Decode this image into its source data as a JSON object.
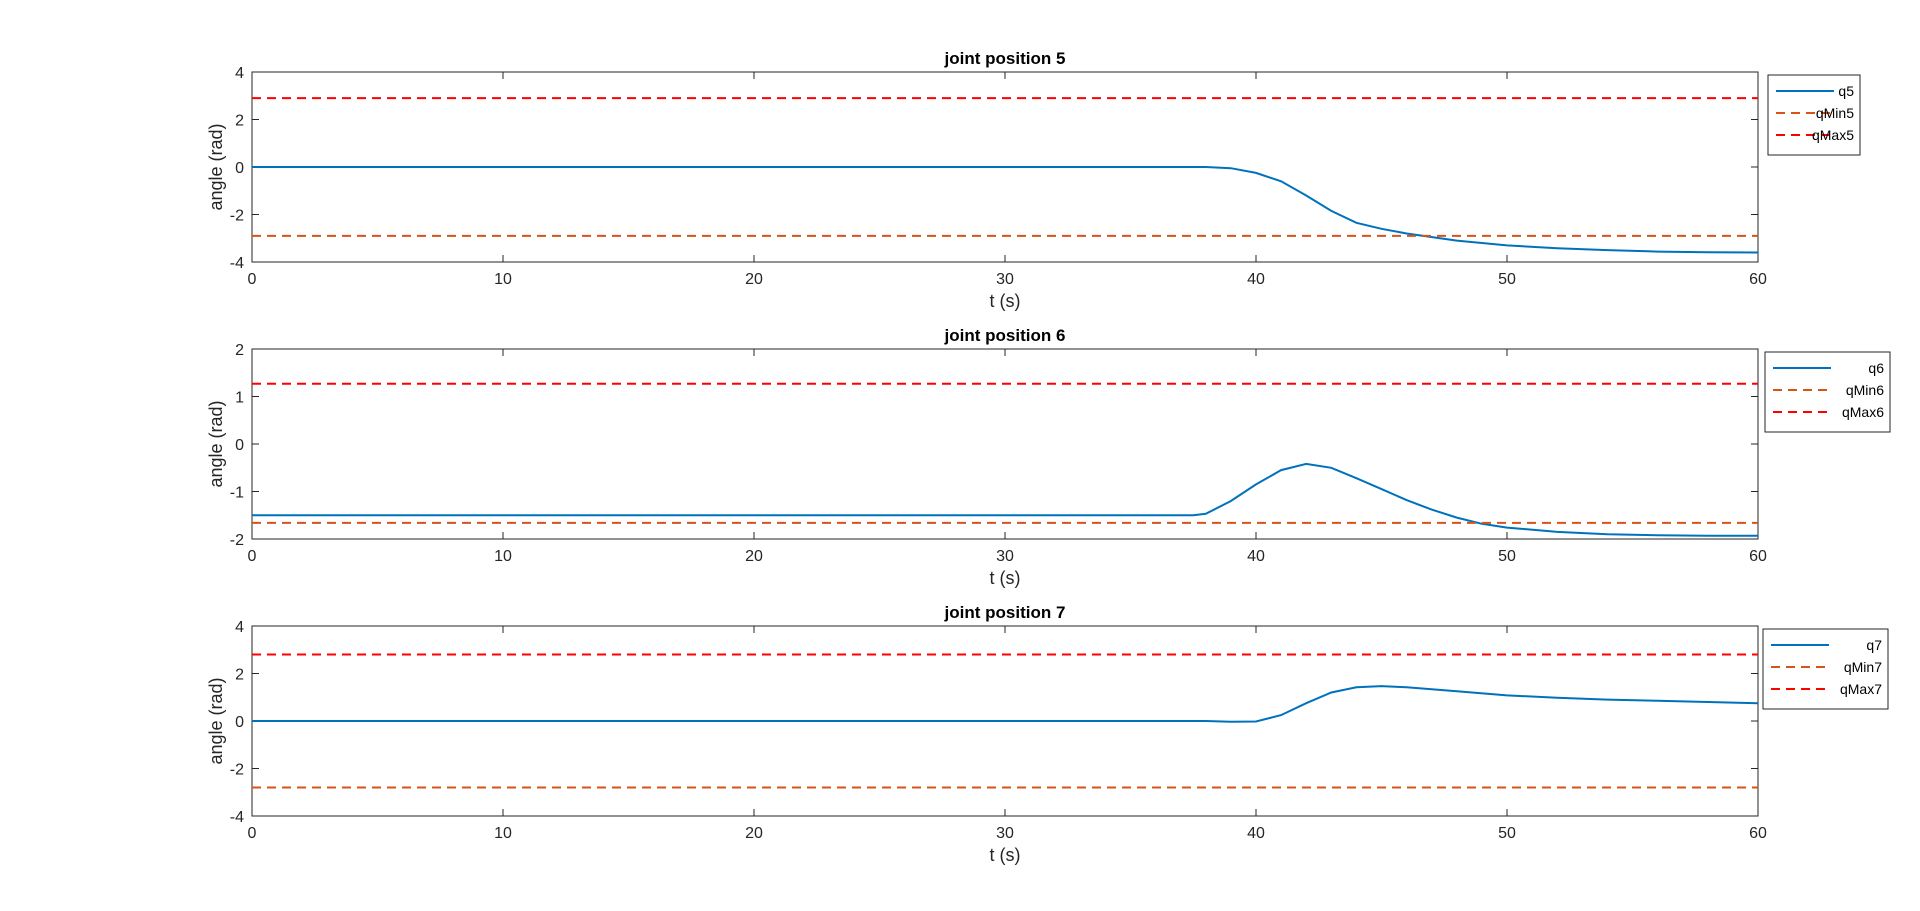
{
  "chart_data": [
    {
      "type": "line",
      "title": "joint position 5",
      "xlabel": "t (s)",
      "ylabel": "angle (rad)",
      "xlim": [
        0,
        60
      ],
      "ylim": [
        -4,
        4
      ],
      "xticks": [
        0,
        10,
        20,
        30,
        40,
        50,
        60
      ],
      "yticks": [
        -4,
        -2,
        0,
        2,
        4
      ],
      "legend": "outside-right",
      "series": [
        {
          "name": "q5",
          "color": "#0072bd",
          "style": "solid",
          "x": [
            0,
            38,
            39,
            40,
            41,
            42,
            43,
            44,
            45,
            46,
            48,
            50,
            52,
            54,
            56,
            58,
            60
          ],
          "y": [
            0,
            0,
            -0.05,
            -0.25,
            -0.6,
            -1.2,
            -1.85,
            -2.35,
            -2.6,
            -2.8,
            -3.1,
            -3.3,
            -3.42,
            -3.5,
            -3.56,
            -3.59,
            -3.6
          ]
        },
        {
          "name": "qMin5",
          "color": "#d95319",
          "style": "dashed",
          "x": [
            0,
            60
          ],
          "y": [
            -2.9,
            -2.9
          ]
        },
        {
          "name": "qMax5",
          "color": "#ff0000",
          "style": "dashed",
          "x": [
            0,
            60
          ],
          "y": [
            2.9,
            2.9
          ]
        }
      ]
    },
    {
      "type": "line",
      "title": "joint position 6",
      "xlabel": "t (s)",
      "ylabel": "angle (rad)",
      "xlim": [
        0,
        60
      ],
      "ylim": [
        -2,
        2
      ],
      "xticks": [
        0,
        10,
        20,
        30,
        40,
        50,
        60
      ],
      "yticks": [
        -2,
        -1,
        0,
        1,
        2
      ],
      "legend": "outside-right",
      "series": [
        {
          "name": "q6",
          "color": "#0072bd",
          "style": "solid",
          "x": [
            0,
            37.5,
            38,
            39,
            40,
            41,
            42,
            43,
            44,
            45,
            46,
            47,
            48,
            49,
            50,
            52,
            54,
            56,
            58,
            60
          ],
          "y": [
            -1.5,
            -1.5,
            -1.47,
            -1.2,
            -0.85,
            -0.55,
            -0.42,
            -0.5,
            -0.72,
            -0.95,
            -1.18,
            -1.38,
            -1.55,
            -1.68,
            -1.76,
            -1.85,
            -1.9,
            -1.92,
            -1.93,
            -1.93
          ]
        },
        {
          "name": "qMin6",
          "color": "#d95319",
          "style": "dashed",
          "x": [
            0,
            60
          ],
          "y": [
            -1.66,
            -1.66
          ]
        },
        {
          "name": "qMax6",
          "color": "#ff0000",
          "style": "dashed",
          "x": [
            0,
            60
          ],
          "y": [
            1.27,
            1.27
          ]
        }
      ]
    },
    {
      "type": "line",
      "title": "joint position 7",
      "xlabel": "t (s)",
      "ylabel": "angle (rad)",
      "xlim": [
        0,
        60
      ],
      "ylim": [
        -4,
        4
      ],
      "xticks": [
        0,
        10,
        20,
        30,
        40,
        50,
        60
      ],
      "yticks": [
        -4,
        -2,
        0,
        2,
        4
      ],
      "legend": "outside-right",
      "series": [
        {
          "name": "q7",
          "color": "#0072bd",
          "style": "solid",
          "x": [
            0,
            38,
            39,
            40,
            41,
            42,
            43,
            44,
            45,
            46,
            48,
            50,
            52,
            54,
            56,
            58,
            60
          ],
          "y": [
            0,
            0,
            -0.03,
            -0.02,
            0.25,
            0.75,
            1.2,
            1.42,
            1.47,
            1.42,
            1.25,
            1.08,
            0.98,
            0.9,
            0.85,
            0.8,
            0.75
          ]
        },
        {
          "name": "qMin7",
          "color": "#d95319",
          "style": "dashed",
          "x": [
            0,
            60
          ],
          "y": [
            -2.8,
            -2.8
          ]
        },
        {
          "name": "qMax7",
          "color": "#ff0000",
          "style": "dashed",
          "x": [
            0,
            60
          ],
          "y": [
            2.8,
            2.8
          ]
        }
      ]
    }
  ]
}
